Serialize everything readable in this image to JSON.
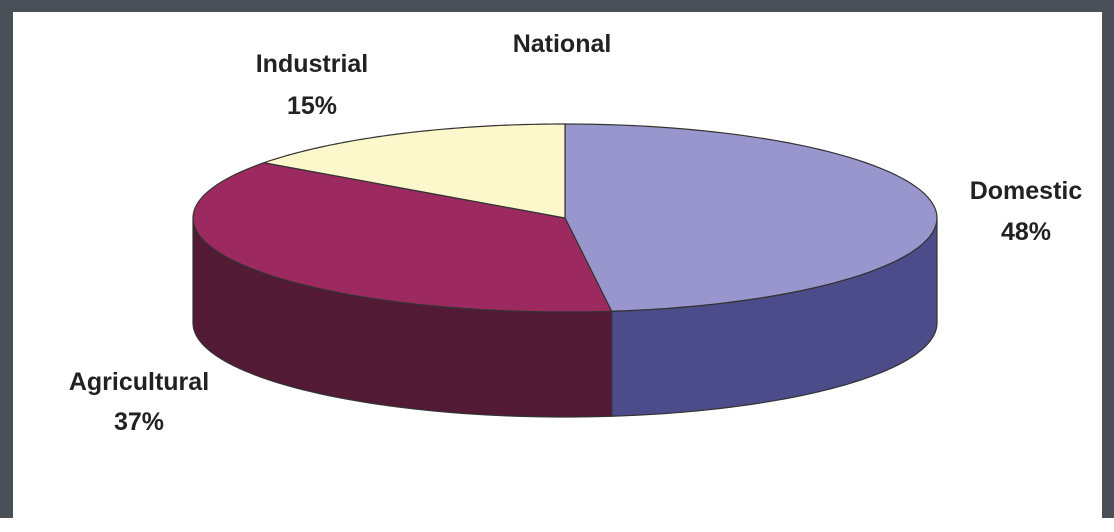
{
  "chart_data": {
    "type": "pie",
    "style": "3d",
    "title": "National",
    "slices": [
      {
        "label": "Domestic",
        "percent_label": "48%",
        "value": 48,
        "color": "#9896cc",
        "side_color": "#4c4c8a"
      },
      {
        "label": "Agricultural",
        "percent_label": "37%",
        "value": 37,
        "color": "#9c2a60",
        "side_color": "#521a34"
      },
      {
        "label": "Industrial",
        "percent_label": "15%",
        "value": 15,
        "color": "#fcf8cc",
        "side_color": "#c8c49a"
      }
    ],
    "legend": "none"
  }
}
